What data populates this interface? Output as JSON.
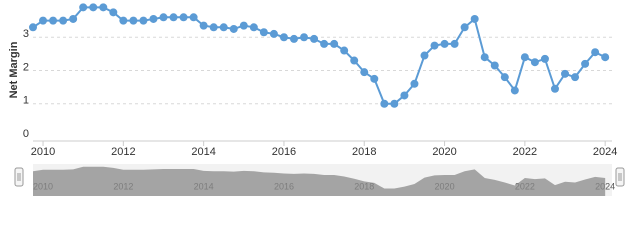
{
  "chart_data": {
    "type": "line",
    "y_label": "Net Margin",
    "series": [
      {
        "name": "Net Margin",
        "color": "#5b9bd5",
        "x": [
          2009.75,
          2010,
          2010.25,
          2010.5,
          2010.75,
          2011,
          2011.25,
          2011.5,
          2011.75,
          2012,
          2012.25,
          2012.5,
          2012.75,
          2013,
          2013.25,
          2013.5,
          2013.75,
          2014,
          2014.25,
          2014.5,
          2014.75,
          2015,
          2015.25,
          2015.5,
          2015.75,
          2016,
          2016.25,
          2016.5,
          2016.75,
          2017,
          2017.25,
          2017.5,
          2017.75,
          2018,
          2018.25,
          2018.5,
          2018.75,
          2019,
          2019.25,
          2019.5,
          2019.75,
          2020,
          2020.25,
          2020.5,
          2020.75,
          2021,
          2021.25,
          2021.5,
          2021.75,
          2022,
          2022.25,
          2022.5,
          2022.75,
          2023,
          2023.25,
          2023.5,
          2023.75,
          2024
        ],
        "values": [
          3.3,
          3.5,
          3.5,
          3.5,
          3.55,
          3.9,
          3.9,
          3.9,
          3.75,
          3.5,
          3.5,
          3.5,
          3.55,
          3.6,
          3.6,
          3.6,
          3.6,
          3.35,
          3.3,
          3.3,
          3.25,
          3.35,
          3.3,
          3.15,
          3.1,
          3.0,
          2.95,
          3.0,
          2.95,
          2.8,
          2.8,
          2.6,
          2.3,
          1.95,
          1.75,
          1.0,
          1.0,
          1.25,
          1.6,
          2.45,
          2.75,
          2.8,
          2.8,
          3.3,
          3.55,
          2.4,
          2.15,
          1.8,
          1.4,
          2.4,
          2.25,
          2.35,
          1.45,
          1.9,
          1.8,
          2.2,
          2.55,
          2.4
        ]
      }
    ],
    "xlim": [
      2009.75,
      2024.17
    ],
    "xticks": [
      2010,
      2012,
      2014,
      2016,
      2018,
      2020,
      2022,
      2024
    ],
    "ylim": [
      0,
      4
    ],
    "yticks": [
      0,
      1,
      2,
      3
    ],
    "grid": true
  }
}
